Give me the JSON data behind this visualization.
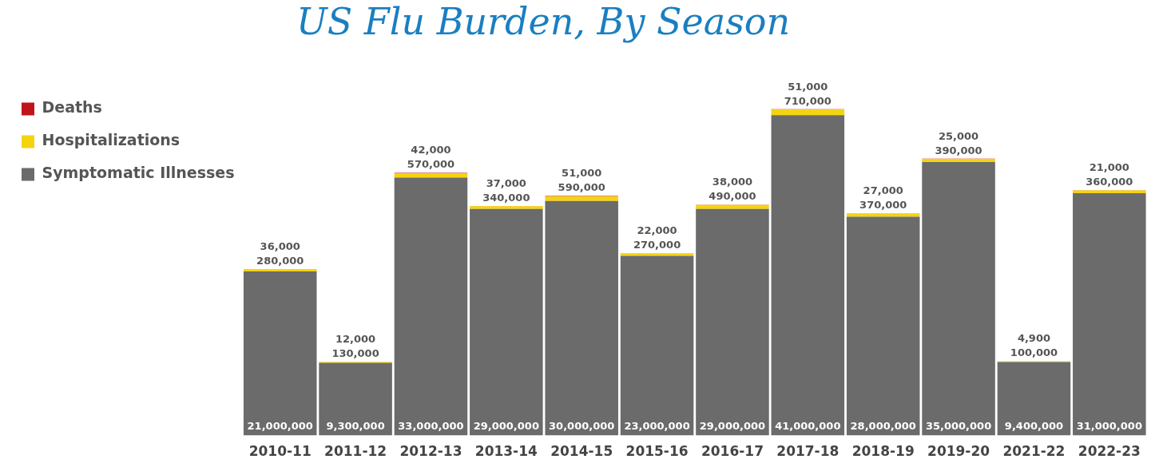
{
  "chart_data": {
    "type": "bar",
    "title": "US Flu Burden, By Season",
    "stacked": true,
    "legend": "top left",
    "grid": false,
    "tick_labels": "x",
    "categories": [
      "2010-11",
      "2011-12",
      "2012-13",
      "2013-14",
      "2014-15",
      "2015-16",
      "2016-17",
      "2017-18",
      "2018-19",
      "2019-20",
      "2021-22",
      "2022-23"
    ],
    "series": [
      {
        "name": "Symptomatic Illnesses",
        "color": "#6b6b6b",
        "values": [
          21000000,
          9300000,
          33000000,
          29000000,
          30000000,
          23000000,
          29000000,
          41000000,
          28000000,
          35000000,
          9400000,
          31000000
        ],
        "value_labels": [
          "21,000,000",
          "9,300,000",
          "33,000,000",
          "29,000,000",
          "30,000,000",
          "23,000,000",
          "29,000,000",
          "41,000,000",
          "28,000,000",
          "35,000,000",
          "9,400,000",
          "31,000,000"
        ]
      },
      {
        "name": "Hospitalizations",
        "color": "#f5d40f",
        "values": [
          280000,
          130000,
          570000,
          340000,
          590000,
          270000,
          490000,
          710000,
          370000,
          390000,
          100000,
          360000
        ],
        "value_labels": [
          "280,000",
          "130,000",
          "570,000",
          "340,000",
          "590,000",
          "270,000",
          "490,000",
          "710,000",
          "370,000",
          "390,000",
          "100,000",
          "360,000"
        ]
      },
      {
        "name": "Deaths",
        "color": "#c0141b",
        "values": [
          36000,
          12000,
          42000,
          37000,
          51000,
          22000,
          38000,
          51000,
          27000,
          25000,
          4900,
          21000
        ],
        "value_labels": [
          "36,000",
          "12,000",
          "42,000",
          "37,000",
          "51,000",
          "22,000",
          "38,000",
          "51,000",
          "27,000",
          "25,000",
          "4,900",
          "21,000"
        ]
      }
    ]
  }
}
